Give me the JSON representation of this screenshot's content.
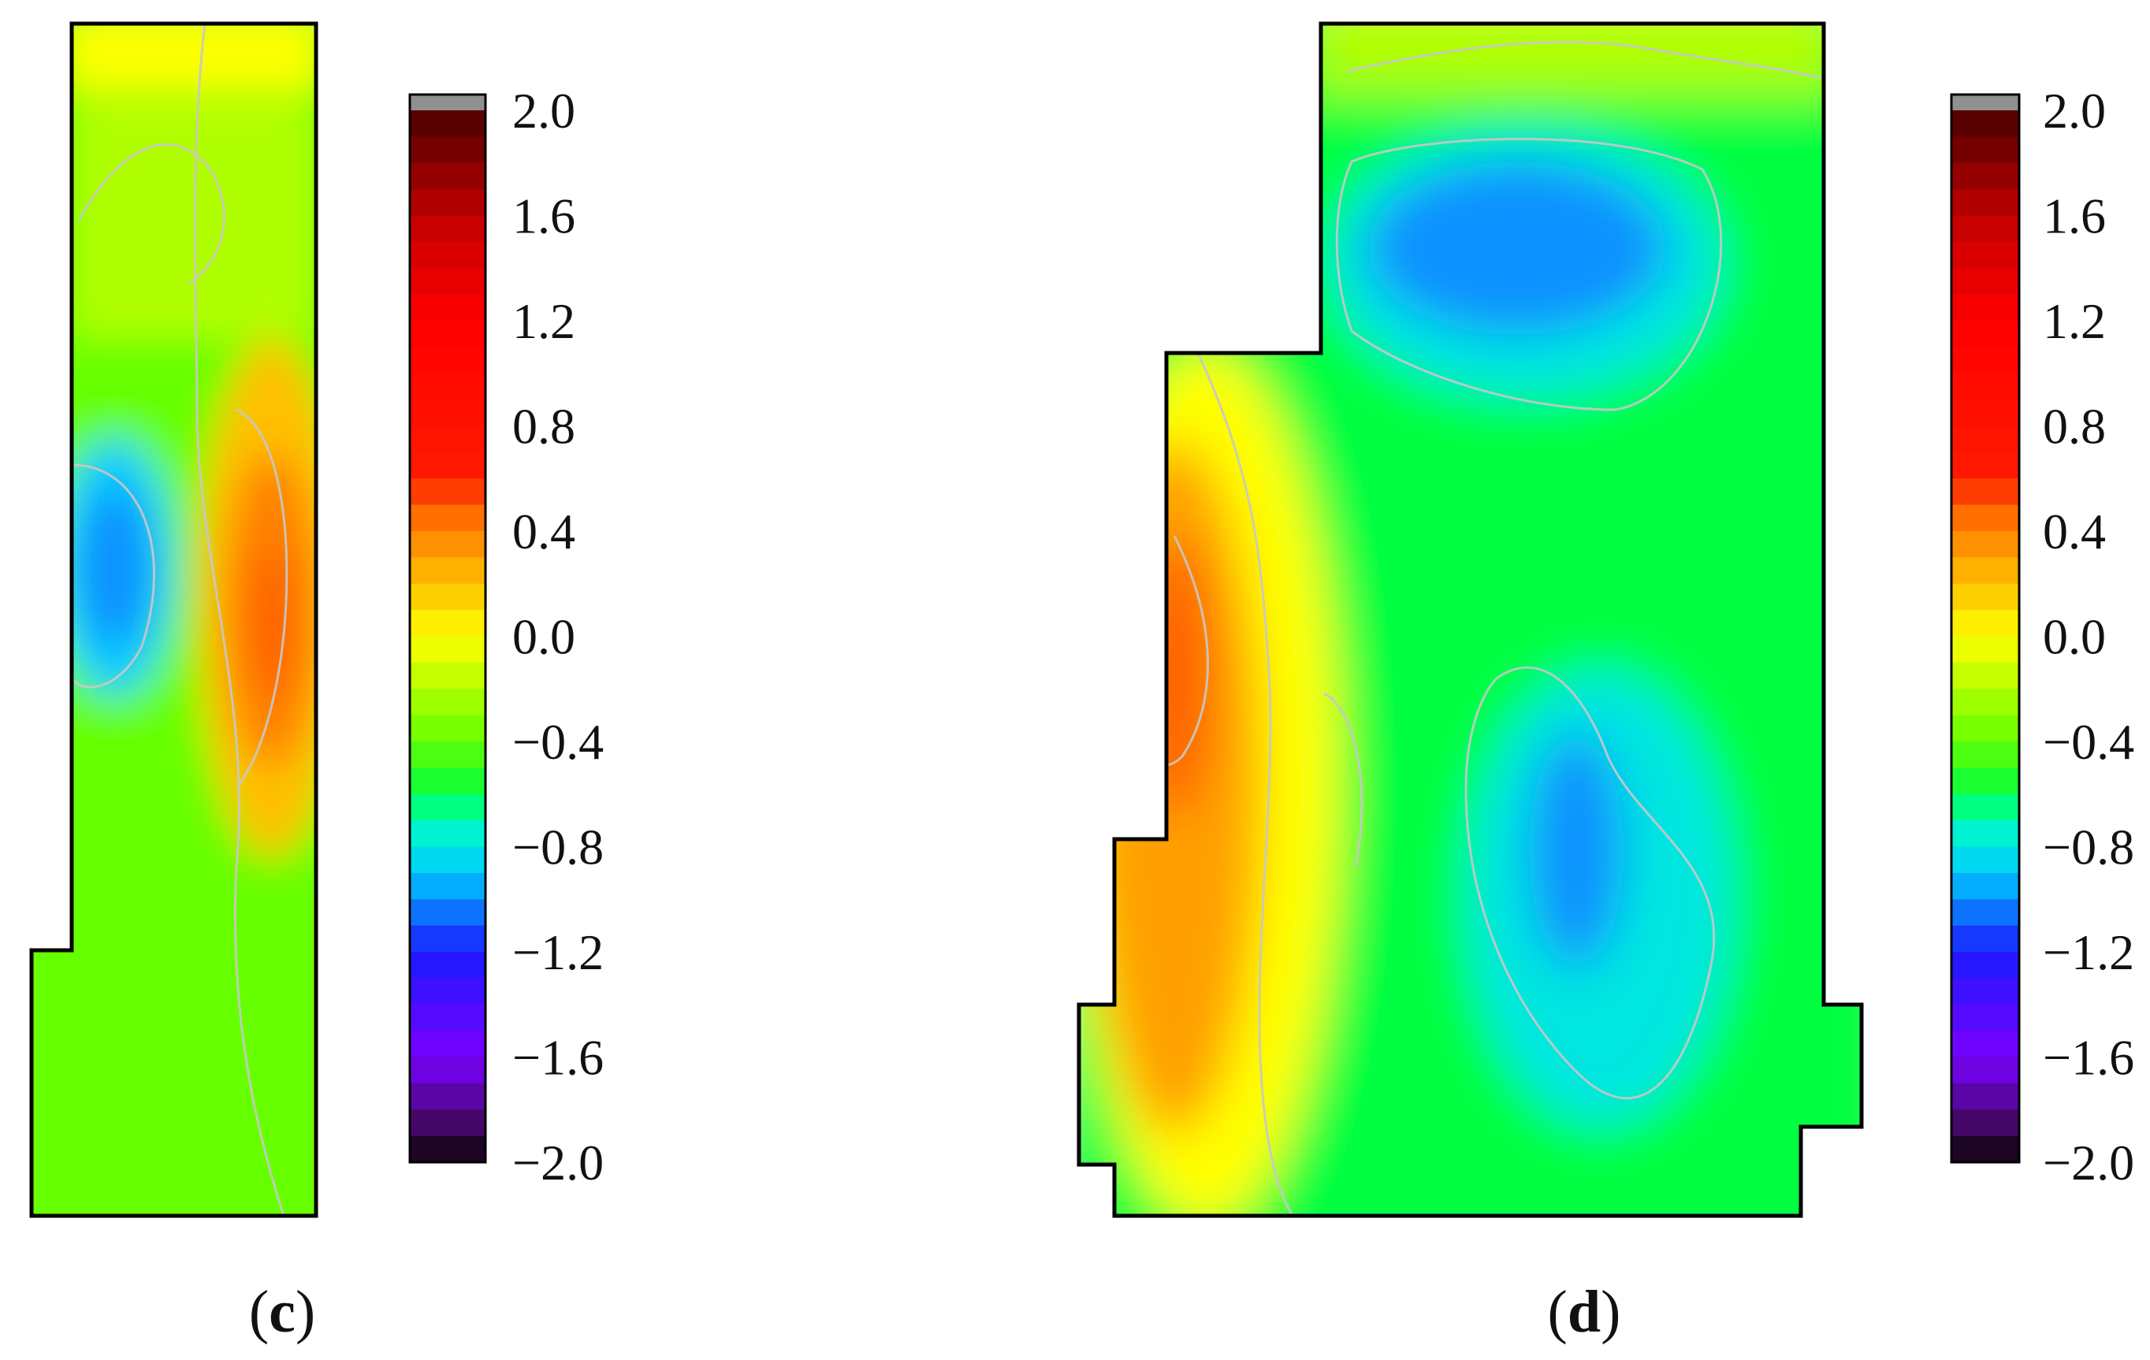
{
  "chart_data": [
    {
      "type": "heatmap",
      "panel_label": "c",
      "colorbar": {
        "min": -2.0,
        "max": 2.0,
        "ticks": [
          "2.0",
          "1.6",
          "1.2",
          "0.8",
          "0.4",
          "0.0",
          "−0.4",
          "−0.8",
          "−1.2",
          "−1.6",
          "−2.0"
        ],
        "tick_values": [
          2.0,
          1.6,
          1.2,
          0.8,
          0.4,
          0.0,
          -0.4,
          -0.8,
          -1.2,
          -1.6,
          -2.0
        ]
      },
      "regions": [
        {
          "description": "background field",
          "approx_value": -0.4
        },
        {
          "description": "upper band",
          "approx_value": -0.2
        },
        {
          "description": "top strip",
          "approx_value": 0.0
        },
        {
          "description": "left low pocket",
          "approx_value": -0.9
        },
        {
          "description": "left low core",
          "approx_value": -1.0
        },
        {
          "description": "right high ridge",
          "approx_value": 0.2
        },
        {
          "description": "right high core",
          "approx_value": 0.4
        },
        {
          "description": "right peak",
          "approx_value": 0.5
        }
      ]
    },
    {
      "type": "heatmap",
      "panel_label": "d",
      "colorbar": {
        "min": -2.0,
        "max": 2.0,
        "ticks": [
          "2.0",
          "1.6",
          "1.2",
          "0.8",
          "0.4",
          "0.0",
          "−0.4",
          "−0.8",
          "−1.2",
          "−1.6",
          "−2.0"
        ],
        "tick_values": [
          2.0,
          1.6,
          1.2,
          0.8,
          0.4,
          0.0,
          -0.4,
          -0.8,
          -1.2,
          -1.6,
          -2.0
        ]
      },
      "regions": [
        {
          "description": "background field",
          "approx_value": -0.6
        },
        {
          "description": "top band",
          "approx_value": -0.2
        },
        {
          "description": "upper low pocket",
          "approx_value": -0.8
        },
        {
          "description": "upper low core",
          "approx_value": -1.0
        },
        {
          "description": "lower low pocket",
          "approx_value": -0.8
        },
        {
          "description": "lower low core",
          "approx_value": -1.0
        },
        {
          "description": "left high ridge",
          "approx_value": 0.0
        },
        {
          "description": "left high core",
          "approx_value": 0.3
        },
        {
          "description": "left peak",
          "approx_value": 0.5
        }
      ]
    }
  ],
  "colormap": {
    "stops": [
      {
        "value": -2.0,
        "color": "#000000"
      },
      {
        "value": -1.9,
        "color": "#3a0a4a"
      },
      {
        "value": -1.6,
        "color": "#7a00ff"
      },
      {
        "value": -1.2,
        "color": "#1a1aff"
      },
      {
        "value": -0.9,
        "color": "#00ccff"
      },
      {
        "value": -0.7,
        "color": "#00ffc0"
      },
      {
        "value": -0.6,
        "color": "#00ff40"
      },
      {
        "value": -0.4,
        "color": "#66ff00"
      },
      {
        "value": -0.2,
        "color": "#b0ff00"
      },
      {
        "value": 0.0,
        "color": "#ffff00"
      },
      {
        "value": 0.2,
        "color": "#ffc000"
      },
      {
        "value": 0.5,
        "color": "#ff6000"
      },
      {
        "value": 0.6,
        "color": "#ff1a00"
      },
      {
        "value": 1.2,
        "color": "#ff0000"
      },
      {
        "value": 1.6,
        "color": "#c00000"
      },
      {
        "value": 2.0,
        "color": "#4a0000"
      }
    ],
    "overflow_color": "#909090"
  }
}
